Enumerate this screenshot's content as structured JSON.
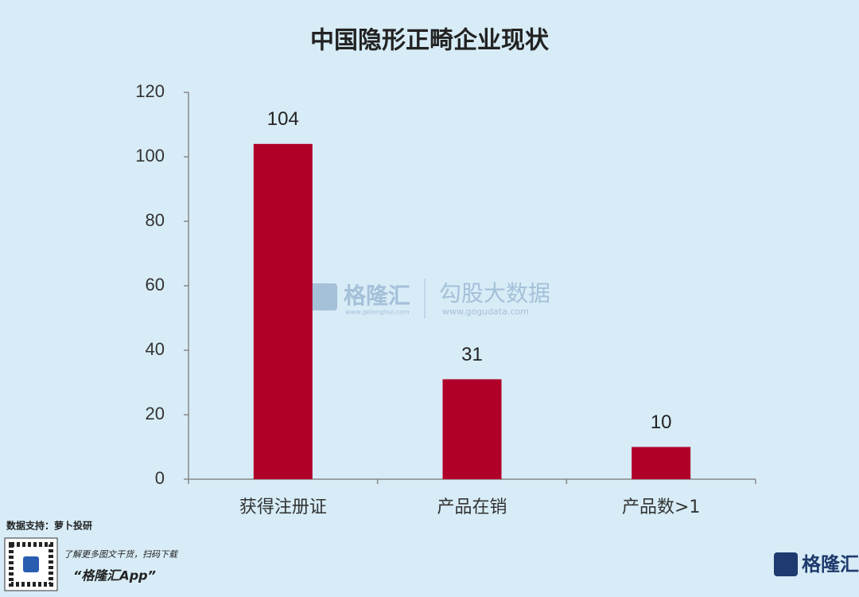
{
  "chart_data": {
    "type": "bar",
    "title": "中国隐形正畸企业现状",
    "categories": [
      "获得注册证",
      "产品在销",
      "产品数>1"
    ],
    "values": [
      104,
      31,
      10
    ],
    "color": "#b0002a",
    "ylim": [
      0,
      120
    ],
    "yticks": [
      0,
      20,
      40,
      60,
      80,
      100,
      120
    ],
    "grid": false,
    "data_labels": true
  },
  "watermark": {
    "brand": "格隆汇",
    "brand_url": "www.gelonghui.com",
    "partner": "勾股大数据",
    "partner_url": "www.gogudata.com"
  },
  "footer": {
    "source": "数据支持：萝卜投研",
    "promo": "了解更多图文干货，扫码下载",
    "app": "“格隆汇App”",
    "logo": "格隆汇"
  }
}
